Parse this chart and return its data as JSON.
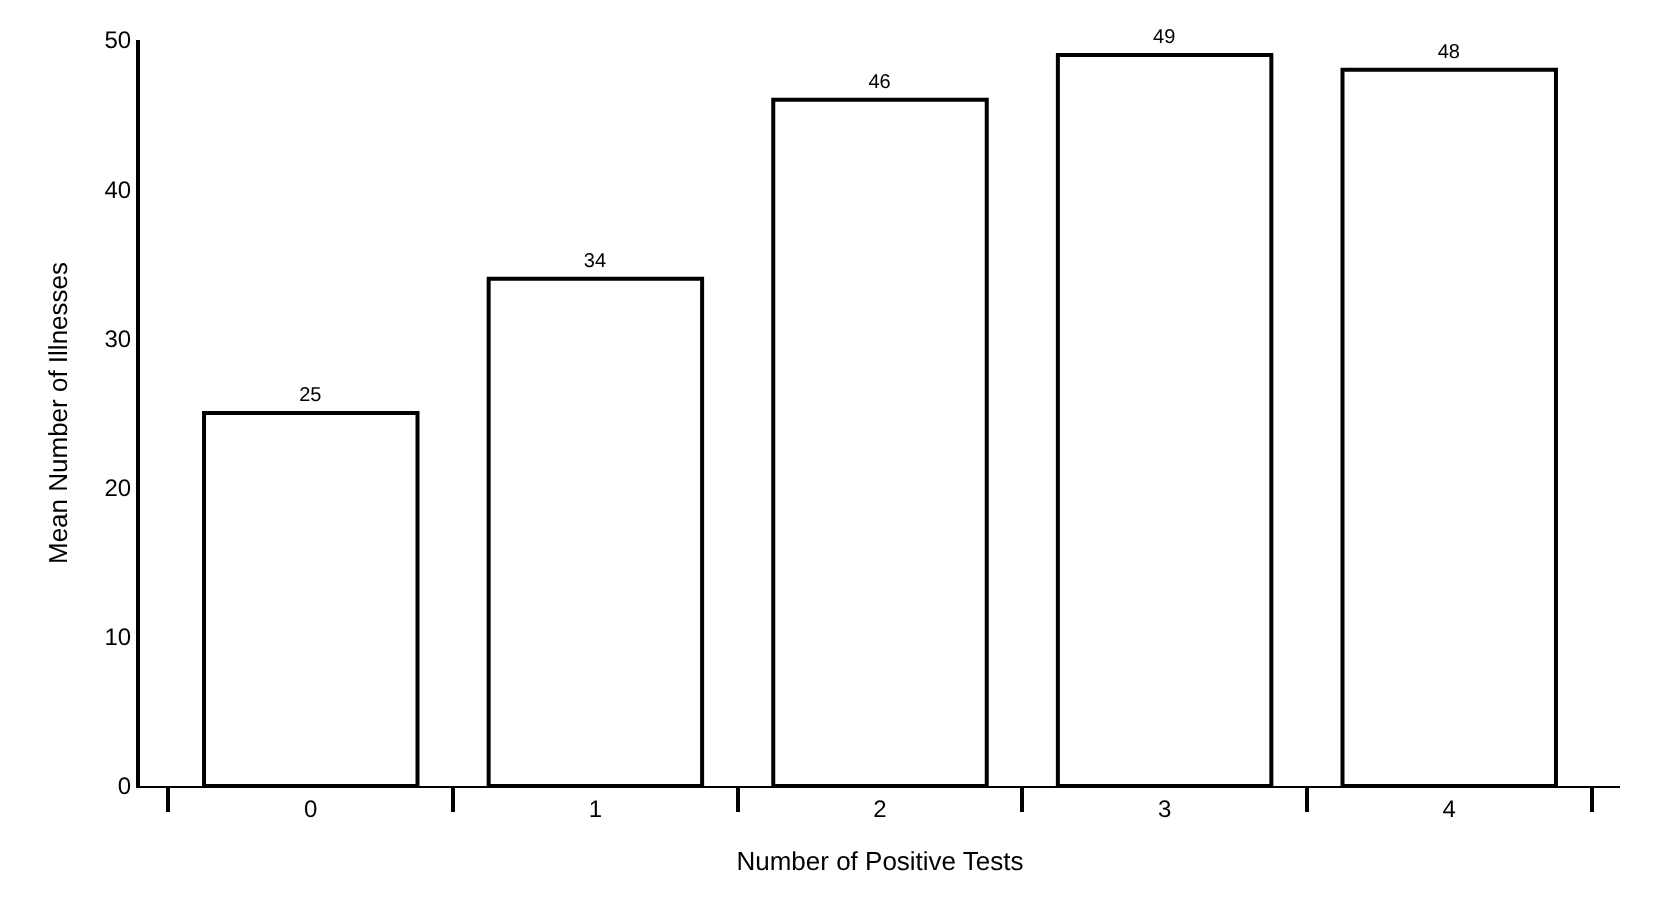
{
  "chart_data": {
    "type": "bar",
    "xlabel": "Number of Positive Tests",
    "ylabel": "Mean Number of Illnesses",
    "categories": [
      "0",
      "1",
      "2",
      "3",
      "4"
    ],
    "values": [
      25,
      34,
      46,
      49,
      48
    ],
    "color": "#ffffff",
    "ylim": [
      0,
      50
    ],
    "yticks": [
      0,
      10,
      20,
      30,
      40,
      50
    ],
    "data_labels": true
  }
}
